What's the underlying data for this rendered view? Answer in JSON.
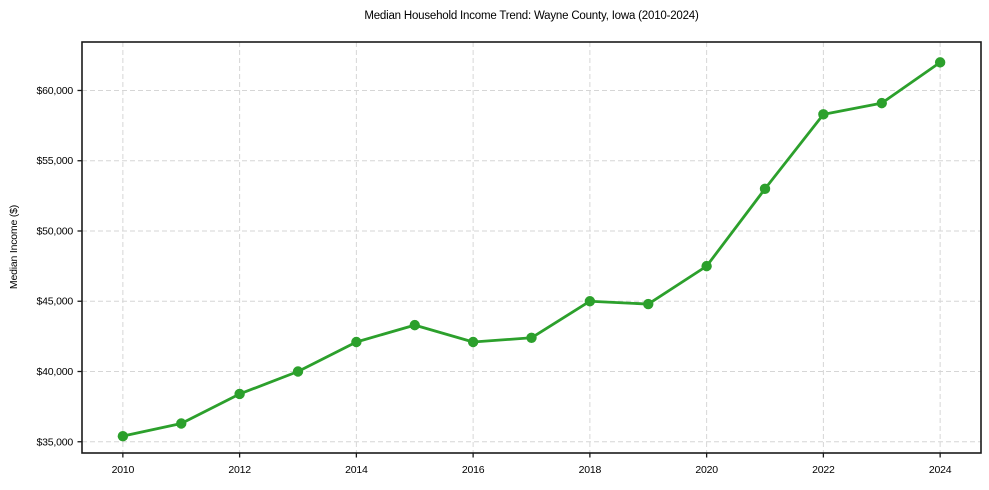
{
  "chart_data": {
    "type": "line",
    "title": "Median Household Income Trend: Wayne County, Iowa (2010-2024)",
    "xlabel": "",
    "ylabel": "Median Income ($)",
    "x": [
      2010,
      2011,
      2012,
      2013,
      2014,
      2015,
      2016,
      2017,
      2018,
      2019,
      2020,
      2021,
      2022,
      2023,
      2024
    ],
    "values": [
      35400,
      36300,
      38400,
      40000,
      42100,
      43300,
      42100,
      42400,
      45000,
      44800,
      47500,
      53000,
      58300,
      59100,
      62000
    ],
    "xlim": [
      2009.3,
      2024.7
    ],
    "ylim": [
      34200,
      63450
    ],
    "x_ticks": [
      2010,
      2012,
      2014,
      2016,
      2018,
      2020,
      2022,
      2024
    ],
    "x_tick_labels": [
      "2010",
      "2012",
      "2014",
      "2016",
      "2018",
      "2020",
      "2022",
      "2024"
    ],
    "y_ticks": [
      35000,
      40000,
      45000,
      50000,
      55000,
      60000
    ],
    "y_tick_labels": [
      "$35,000",
      "$40,000",
      "$45,000",
      "$50,000",
      "$55,000",
      "$60,000"
    ],
    "grid": true,
    "grid_style": "dashed",
    "legend_position": "none",
    "marker": "circle"
  },
  "colors": {
    "line": "#2ca02c",
    "marker": "#2ca02c",
    "grid": "#d6d6d6",
    "spine": "#1a1a1a",
    "tick": "#1a1a1a",
    "text": "#000000",
    "background": "#ffffff"
  }
}
